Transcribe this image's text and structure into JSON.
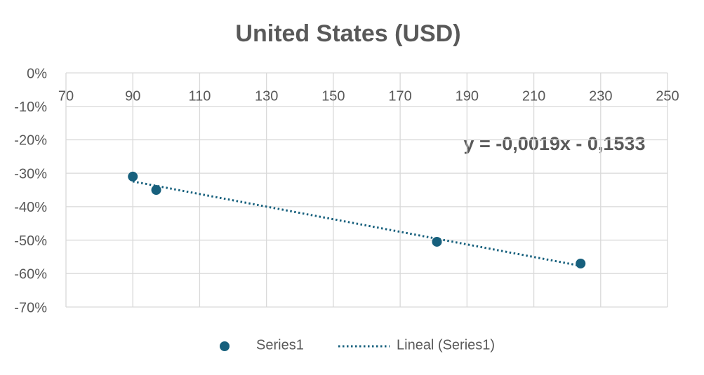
{
  "chart_data": {
    "type": "scatter",
    "title": "United States (USD)",
    "series": [
      {
        "name": "Series1",
        "color": "#17607d",
        "x": [
          90,
          97,
          181,
          224
        ],
        "values": [
          -31,
          -35,
          -50.5,
          -57
        ]
      }
    ],
    "trendline": {
      "name": "Lineal (Series1)",
      "color": "#17607d",
      "equation": "y = -0,0019x - 0,1533"
    },
    "xlim": [
      70,
      250
    ],
    "xticks": [
      70,
      90,
      110,
      130,
      150,
      170,
      190,
      210,
      230,
      250
    ],
    "ylim": [
      -70,
      0
    ],
    "yticks": [
      {
        "value": 0,
        "label": "0%"
      },
      {
        "value": -10,
        "label": "-10%"
      },
      {
        "value": -20,
        "label": "-20%"
      },
      {
        "value": -30,
        "label": "-30%"
      },
      {
        "value": -40,
        "label": "-40%"
      },
      {
        "value": -50,
        "label": "-50%"
      },
      {
        "value": -60,
        "label": "-60%"
      },
      {
        "value": -70,
        "label": "-70%"
      }
    ],
    "grid": true,
    "legend": "bottom"
  }
}
